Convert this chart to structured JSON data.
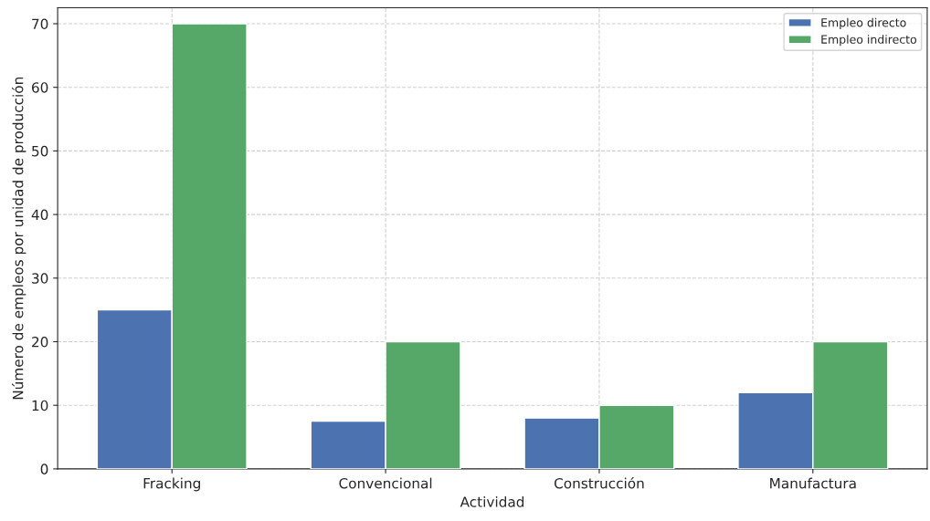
{
  "chart_data": {
    "type": "bar",
    "xlabel": "Actividad",
    "ylabel": "Número de empleos por unidad de producción",
    "categories": [
      "Fracking",
      "Convencional",
      "Construcción",
      "Manufactura"
    ],
    "series": [
      {
        "name": "Empleo directo",
        "color": "#4c72b0",
        "values": [
          25,
          7.5,
          8,
          12
        ]
      },
      {
        "name": "Empleo indirecto",
        "color": "#55a868",
        "values": [
          70,
          20,
          10,
          20
        ]
      }
    ],
    "ylim": [
      0,
      72.5
    ],
    "yticks": [
      0,
      10,
      20,
      30,
      40,
      50,
      60,
      70
    ],
    "grid": true,
    "legend": "top right"
  }
}
